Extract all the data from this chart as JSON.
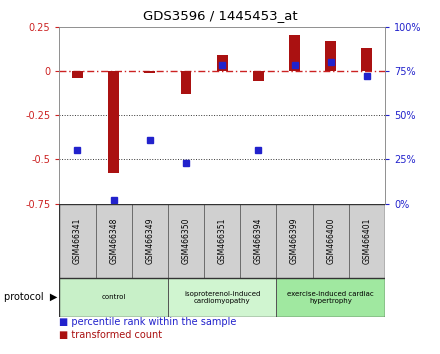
{
  "title": "GDS3596 / 1445453_at",
  "samples": [
    "GSM466341",
    "GSM466348",
    "GSM466349",
    "GSM466350",
    "GSM466351",
    "GSM466394",
    "GSM466399",
    "GSM466400",
    "GSM466401"
  ],
  "transformed_count": [
    -0.04,
    -0.58,
    -0.01,
    -0.13,
    0.09,
    -0.06,
    0.2,
    0.17,
    0.13
  ],
  "percentile_rank": [
    0.3,
    0.02,
    0.36,
    0.23,
    0.78,
    0.3,
    0.78,
    0.8,
    0.72
  ],
  "ylim_left": [
    -0.75,
    0.25
  ],
  "ylim_right": [
    0,
    100
  ],
  "yticks_left": [
    -0.75,
    -0.5,
    -0.25,
    0.0,
    0.25
  ],
  "yticks_right": [
    0,
    25,
    50,
    75,
    100
  ],
  "ytick_labels_left": [
    "-0.75",
    "-0.5",
    "-0.25",
    "0",
    "0.25"
  ],
  "ytick_labels_right": [
    "0%",
    "25%",
    "50%",
    "75%",
    "100%"
  ],
  "groups": [
    {
      "label": "control",
      "indices": [
        0,
        1,
        2
      ],
      "color": "#c8f0c8"
    },
    {
      "label": "isoproterenol-induced\ncardiomyopathy",
      "indices": [
        3,
        4,
        5
      ],
      "color": "#d0f5d0"
    },
    {
      "label": "exercise-induced cardiac\nhypertrophy",
      "indices": [
        6,
        7,
        8
      ],
      "color": "#a0e8a0"
    }
  ],
  "bar_color": "#aa1111",
  "square_color": "#2222cc",
  "legend_items": [
    {
      "label": "transformed count",
      "color": "#aa1111"
    },
    {
      "label": "percentile rank within the sample",
      "color": "#2222cc"
    }
  ],
  "hline_dotdash_color": "#cc2222",
  "hline_dotted_color": "#333333",
  "protocol_label": "protocol",
  "background_color": "#ffffff",
  "sample_box_color": "#d0d0d0",
  "right_axis_label_75": "75",
  "right_axis_label_100": "100%"
}
